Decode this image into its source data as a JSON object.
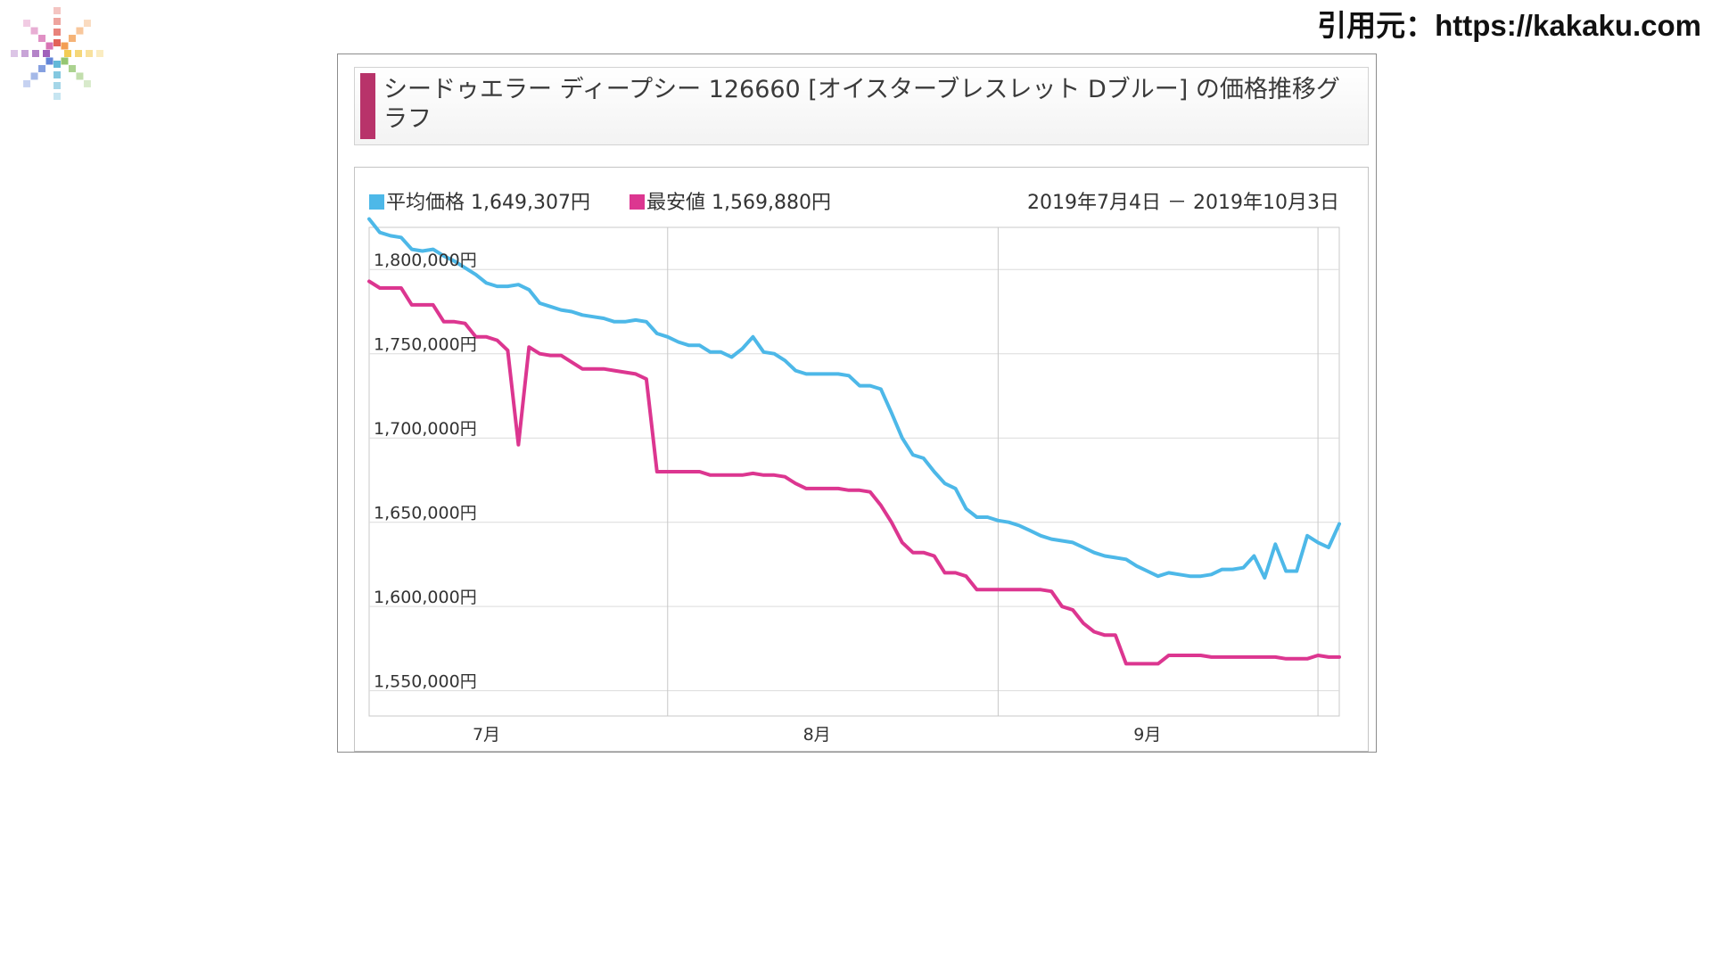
{
  "source_text": "引用元：https://kakaku.com",
  "logo": {
    "name": "pixel-starburst-logo",
    "colors": [
      "#e05a4f",
      "#f2994a",
      "#f2c94c",
      "#8fc36a",
      "#5bb5d6",
      "#5b7fd6",
      "#9b59b6",
      "#d66bb0"
    ]
  },
  "title": "シードゥエラー ディープシー 126660 [オイスターブレスレット Dブルー] の価格推移グラフ",
  "chart_data": {
    "type": "line",
    "date_range": "2019年7月4日 － 2019年10月3日",
    "x_range": [
      "2019-07-04",
      "2019-10-03"
    ],
    "x_ticks": [
      {
        "date": "2019-07-15",
        "label": "7月"
      },
      {
        "date": "2019-08-15",
        "label": "8月"
      },
      {
        "date": "2019-09-15",
        "label": "9月"
      }
    ],
    "ylim": [
      1535000,
      1825000
    ],
    "y_ticks": [
      {
        "value": 1800000,
        "label": "1,800,000円"
      },
      {
        "value": 1750000,
        "label": "1,750,000円"
      },
      {
        "value": 1700000,
        "label": "1,700,000円"
      },
      {
        "value": 1650000,
        "label": "1,650,000円"
      },
      {
        "value": 1600000,
        "label": "1,600,000円"
      },
      {
        "value": 1550000,
        "label": "1,550,000円"
      }
    ],
    "series": [
      {
        "name": "平均価格",
        "legend_value": "1,649,307円",
        "color": "#4db8e8",
        "points": [
          [
            "2019-07-04",
            1830000
          ],
          [
            "2019-07-05",
            1822000
          ],
          [
            "2019-07-06",
            1820000
          ],
          [
            "2019-07-07",
            1819000
          ],
          [
            "2019-07-08",
            1812000
          ],
          [
            "2019-07-09",
            1811000
          ],
          [
            "2019-07-10",
            1812000
          ],
          [
            "2019-07-11",
            1808000
          ],
          [
            "2019-07-12",
            1805000
          ],
          [
            "2019-07-13",
            1801000
          ],
          [
            "2019-07-14",
            1797000
          ],
          [
            "2019-07-15",
            1792000
          ],
          [
            "2019-07-16",
            1790000
          ],
          [
            "2019-07-17",
            1790000
          ],
          [
            "2019-07-18",
            1791000
          ],
          [
            "2019-07-19",
            1788000
          ],
          [
            "2019-07-20",
            1780000
          ],
          [
            "2019-07-21",
            1778000
          ],
          [
            "2019-07-22",
            1776000
          ],
          [
            "2019-07-23",
            1775000
          ],
          [
            "2019-07-24",
            1773000
          ],
          [
            "2019-07-25",
            1772000
          ],
          [
            "2019-07-26",
            1771000
          ],
          [
            "2019-07-27",
            1769000
          ],
          [
            "2019-07-28",
            1769000
          ],
          [
            "2019-07-29",
            1770000
          ],
          [
            "2019-07-30",
            1769000
          ],
          [
            "2019-07-31",
            1762000
          ],
          [
            "2019-08-01",
            1760000
          ],
          [
            "2019-08-02",
            1757000
          ],
          [
            "2019-08-03",
            1755000
          ],
          [
            "2019-08-04",
            1755000
          ],
          [
            "2019-08-05",
            1751000
          ],
          [
            "2019-08-06",
            1751000
          ],
          [
            "2019-08-07",
            1748000
          ],
          [
            "2019-08-08",
            1753000
          ],
          [
            "2019-08-09",
            1760000
          ],
          [
            "2019-08-10",
            1751000
          ],
          [
            "2019-08-11",
            1750000
          ],
          [
            "2019-08-12",
            1746000
          ],
          [
            "2019-08-13",
            1740000
          ],
          [
            "2019-08-14",
            1738000
          ],
          [
            "2019-08-15",
            1738000
          ],
          [
            "2019-08-16",
            1738000
          ],
          [
            "2019-08-17",
            1738000
          ],
          [
            "2019-08-18",
            1737000
          ],
          [
            "2019-08-19",
            1731000
          ],
          [
            "2019-08-20",
            1731000
          ],
          [
            "2019-08-21",
            1729000
          ],
          [
            "2019-08-22",
            1715000
          ],
          [
            "2019-08-23",
            1700000
          ],
          [
            "2019-08-24",
            1690000
          ],
          [
            "2019-08-25",
            1688000
          ],
          [
            "2019-08-26",
            1680000
          ],
          [
            "2019-08-27",
            1673000
          ],
          [
            "2019-08-28",
            1670000
          ],
          [
            "2019-08-29",
            1658000
          ],
          [
            "2019-08-30",
            1653000
          ],
          [
            "2019-08-31",
            1653000
          ],
          [
            "2019-09-01",
            1651000
          ],
          [
            "2019-09-02",
            1650000
          ],
          [
            "2019-09-03",
            1648000
          ],
          [
            "2019-09-04",
            1645000
          ],
          [
            "2019-09-05",
            1642000
          ],
          [
            "2019-09-06",
            1640000
          ],
          [
            "2019-09-07",
            1639000
          ],
          [
            "2019-09-08",
            1638000
          ],
          [
            "2019-09-09",
            1635000
          ],
          [
            "2019-09-10",
            1632000
          ],
          [
            "2019-09-11",
            1630000
          ],
          [
            "2019-09-12",
            1629000
          ],
          [
            "2019-09-13",
            1628000
          ],
          [
            "2019-09-14",
            1624000
          ],
          [
            "2019-09-15",
            1621000
          ],
          [
            "2019-09-16",
            1618000
          ],
          [
            "2019-09-17",
            1620000
          ],
          [
            "2019-09-18",
            1619000
          ],
          [
            "2019-09-19",
            1618000
          ],
          [
            "2019-09-20",
            1618000
          ],
          [
            "2019-09-21",
            1619000
          ],
          [
            "2019-09-22",
            1622000
          ],
          [
            "2019-09-23",
            1622000
          ],
          [
            "2019-09-24",
            1623000
          ],
          [
            "2019-09-25",
            1630000
          ],
          [
            "2019-09-26",
            1617000
          ],
          [
            "2019-09-27",
            1637000
          ],
          [
            "2019-09-28",
            1621000
          ],
          [
            "2019-09-29",
            1621000
          ],
          [
            "2019-09-30",
            1642000
          ],
          [
            "2019-10-01",
            1638000
          ],
          [
            "2019-10-02",
            1635000
          ],
          [
            "2019-10-03",
            1649000
          ]
        ]
      },
      {
        "name": "最安値",
        "legend_value": "1,569,880円",
        "color": "#dc3690",
        "points": [
          [
            "2019-07-04",
            1793000
          ],
          [
            "2019-07-05",
            1789000
          ],
          [
            "2019-07-06",
            1789000
          ],
          [
            "2019-07-07",
            1789000
          ],
          [
            "2019-07-08",
            1779000
          ],
          [
            "2019-07-09",
            1779000
          ],
          [
            "2019-07-10",
            1779000
          ],
          [
            "2019-07-11",
            1769000
          ],
          [
            "2019-07-12",
            1769000
          ],
          [
            "2019-07-13",
            1768000
          ],
          [
            "2019-07-14",
            1760000
          ],
          [
            "2019-07-15",
            1760000
          ],
          [
            "2019-07-16",
            1758000
          ],
          [
            "2019-07-17",
            1752000
          ],
          [
            "2019-07-18",
            1696000
          ],
          [
            "2019-07-19",
            1754000
          ],
          [
            "2019-07-20",
            1750000
          ],
          [
            "2019-07-21",
            1749000
          ],
          [
            "2019-07-22",
            1749000
          ],
          [
            "2019-07-23",
            1745000
          ],
          [
            "2019-07-24",
            1741000
          ],
          [
            "2019-07-25",
            1741000
          ],
          [
            "2019-07-26",
            1741000
          ],
          [
            "2019-07-27",
            1740000
          ],
          [
            "2019-07-28",
            1739000
          ],
          [
            "2019-07-29",
            1738000
          ],
          [
            "2019-07-30",
            1735000
          ],
          [
            "2019-07-31",
            1680000
          ],
          [
            "2019-08-01",
            1680000
          ],
          [
            "2019-08-02",
            1680000
          ],
          [
            "2019-08-03",
            1680000
          ],
          [
            "2019-08-04",
            1680000
          ],
          [
            "2019-08-05",
            1678000
          ],
          [
            "2019-08-06",
            1678000
          ],
          [
            "2019-08-07",
            1678000
          ],
          [
            "2019-08-08",
            1678000
          ],
          [
            "2019-08-09",
            1679000
          ],
          [
            "2019-08-10",
            1678000
          ],
          [
            "2019-08-11",
            1678000
          ],
          [
            "2019-08-12",
            1677000
          ],
          [
            "2019-08-13",
            1673000
          ],
          [
            "2019-08-14",
            1670000
          ],
          [
            "2019-08-15",
            1670000
          ],
          [
            "2019-08-16",
            1670000
          ],
          [
            "2019-08-17",
            1670000
          ],
          [
            "2019-08-18",
            1669000
          ],
          [
            "2019-08-19",
            1669000
          ],
          [
            "2019-08-20",
            1668000
          ],
          [
            "2019-08-21",
            1660000
          ],
          [
            "2019-08-22",
            1650000
          ],
          [
            "2019-08-23",
            1638000
          ],
          [
            "2019-08-24",
            1632000
          ],
          [
            "2019-08-25",
            1632000
          ],
          [
            "2019-08-26",
            1630000
          ],
          [
            "2019-08-27",
            1620000
          ],
          [
            "2019-08-28",
            1620000
          ],
          [
            "2019-08-29",
            1618000
          ],
          [
            "2019-08-30",
            1610000
          ],
          [
            "2019-08-31",
            1610000
          ],
          [
            "2019-09-01",
            1610000
          ],
          [
            "2019-09-02",
            1610000
          ],
          [
            "2019-09-03",
            1610000
          ],
          [
            "2019-09-04",
            1610000
          ],
          [
            "2019-09-05",
            1610000
          ],
          [
            "2019-09-06",
            1609000
          ],
          [
            "2019-09-07",
            1600000
          ],
          [
            "2019-09-08",
            1598000
          ],
          [
            "2019-09-09",
            1590000
          ],
          [
            "2019-09-10",
            1585000
          ],
          [
            "2019-09-11",
            1583000
          ],
          [
            "2019-09-12",
            1583000
          ],
          [
            "2019-09-13",
            1566000
          ],
          [
            "2019-09-14",
            1566000
          ],
          [
            "2019-09-15",
            1566000
          ],
          [
            "2019-09-16",
            1566000
          ],
          [
            "2019-09-17",
            1571000
          ],
          [
            "2019-09-18",
            1571000
          ],
          [
            "2019-09-19",
            1571000
          ],
          [
            "2019-09-20",
            1571000
          ],
          [
            "2019-09-21",
            1570000
          ],
          [
            "2019-09-22",
            1570000
          ],
          [
            "2019-09-23",
            1570000
          ],
          [
            "2019-09-24",
            1570000
          ],
          [
            "2019-09-25",
            1570000
          ],
          [
            "2019-09-26",
            1570000
          ],
          [
            "2019-09-27",
            1570000
          ],
          [
            "2019-09-28",
            1569000
          ],
          [
            "2019-09-29",
            1569000
          ],
          [
            "2019-09-30",
            1569000
          ],
          [
            "2019-10-01",
            1571000
          ],
          [
            "2019-10-02",
            1570000
          ],
          [
            "2019-10-03",
            1570000
          ]
        ]
      }
    ]
  }
}
